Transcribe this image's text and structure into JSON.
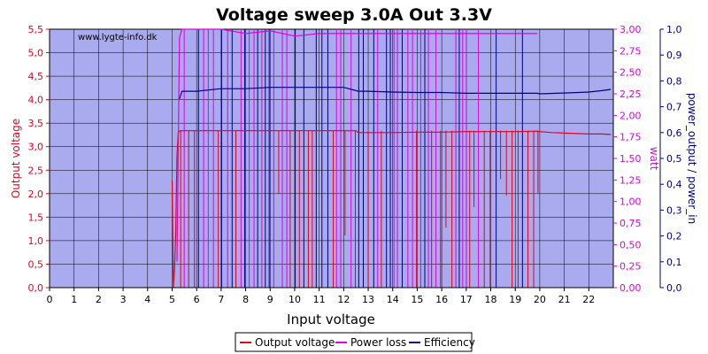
{
  "colors": {
    "plot_bg": "#aaaaee",
    "output_voltage": "#e8001c",
    "power_loss": "#e000e0",
    "efficiency": "#000080",
    "left_axis": "#e8001c",
    "right1_axis": "#e000e0",
    "right2_axis": "#000080",
    "grid": "#000000"
  },
  "chart_data": {
    "type": "line",
    "title": "Voltage sweep 3.0A Out 3.3V",
    "watermark": "www.lygte-info.dk",
    "xlabel": "Input voltage",
    "ylabel_left": "Output voltage",
    "ylabel_right1": "watt",
    "ylabel_right2": "power_output / power_in",
    "xlim": [
      0,
      23
    ],
    "ylim_left": [
      0,
      5.5
    ],
    "ylim_right1": [
      0,
      3.0
    ],
    "ylim_right2": [
      0,
      1.0
    ],
    "grid": true,
    "legend_position": "bottom-center",
    "x_ticks": [
      "0",
      "1",
      "2",
      "3",
      "4",
      "5",
      "6",
      "7",
      "8",
      "9",
      "10",
      "11",
      "12",
      "13",
      "14",
      "15",
      "16",
      "17",
      "18",
      "19",
      "20",
      "21",
      "22"
    ],
    "y_left_ticks": [
      "0,0",
      "0,5",
      "1,0",
      "1,5",
      "2,0",
      "2,5",
      "3,0",
      "3,5",
      "4,0",
      "4,5",
      "5,0",
      "5,5"
    ],
    "y_right1_ticks": [
      "0,00",
      "0,25",
      "0,50",
      "0,75",
      "1,00",
      "1,25",
      "1,50",
      "1,75",
      "2,00",
      "2,25",
      "2,50",
      "2,75",
      "3,00"
    ],
    "y_right2_ticks": [
      "0,0",
      "0,1",
      "0,2",
      "0,3",
      "0,4",
      "0,5",
      "0,6",
      "0,7",
      "0,8",
      "0,9",
      "1,0"
    ],
    "series": [
      {
        "name": "Output voltage",
        "axis": "left",
        "x": [
          5.0,
          5.05,
          5.1,
          5.15,
          5.2,
          5.25,
          5.3,
          5.35,
          5.4,
          5.5,
          5.6,
          5.8,
          6.0,
          6.5,
          7.0,
          8.0,
          9.0,
          10.0,
          11.0,
          12.0,
          12.5,
          12.6,
          13.0,
          14.0,
          15.0,
          16.0,
          17.0,
          18.0,
          19.0,
          19.9,
          20.0,
          20.5,
          21.0,
          21.5,
          22.0,
          22.5,
          22.9
        ],
        "y": [
          2.28,
          0.0,
          0.4,
          1.2,
          2.8,
          3.3,
          3.33,
          3.34,
          3.34,
          3.34,
          3.34,
          3.34,
          3.34,
          3.34,
          3.34,
          3.34,
          3.34,
          3.34,
          3.34,
          3.34,
          3.34,
          3.3,
          3.3,
          3.3,
          3.31,
          3.31,
          3.32,
          3.32,
          3.32,
          3.33,
          3.32,
          3.3,
          3.29,
          3.28,
          3.27,
          3.27,
          3.26
        ]
      },
      {
        "name": "Power loss",
        "axis": "right1",
        "x": [
          5.2,
          5.3,
          5.4,
          6.0,
          7.0,
          8.0,
          9.0,
          10.0,
          11.0,
          12.0,
          13.0,
          14.0,
          15.0,
          16.0,
          17.0,
          18.0,
          19.0,
          19.9
        ],
        "y": [
          0.3,
          2.9,
          3.0,
          3.0,
          3.0,
          2.95,
          2.98,
          2.92,
          2.95,
          2.95,
          2.95,
          2.95,
          2.95,
          2.95,
          2.95,
          2.95,
          2.95,
          2.95
        ]
      },
      {
        "name": "Efficiency",
        "axis": "right2",
        "x": [
          5.3,
          5.4,
          5.6,
          6.0,
          7.0,
          8.0,
          9.0,
          10.0,
          11.0,
          12.0,
          12.6,
          13.0,
          14.0,
          15.0,
          16.0,
          17.0,
          18.0,
          19.0,
          19.9,
          20.0,
          21.0,
          22.0,
          22.5,
          22.9
        ],
        "y": [
          0.73,
          0.76,
          0.76,
          0.76,
          0.77,
          0.77,
          0.775,
          0.775,
          0.775,
          0.775,
          0.76,
          0.76,
          0.757,
          0.755,
          0.755,
          0.752,
          0.752,
          0.752,
          0.752,
          0.75,
          0.753,
          0.757,
          0.762,
          0.767
        ]
      }
    ]
  },
  "legend": {
    "items": [
      {
        "label": "Output voltage"
      },
      {
        "label": "Power loss"
      },
      {
        "label": "Efficiency"
      }
    ]
  }
}
